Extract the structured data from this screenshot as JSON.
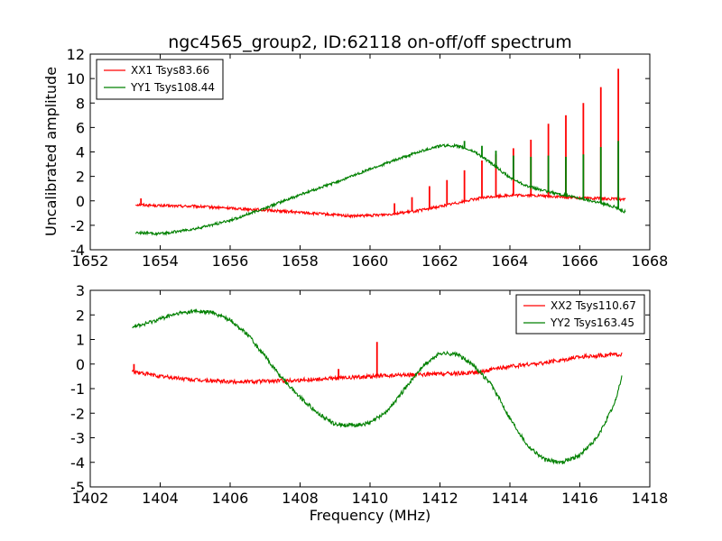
{
  "figure": {
    "title": "ngc4565_group2, ID:62118 on-off/off spectrum",
    "shared_ylabel": "Uncalibrated amplitude",
    "shared_xlabel": "Frequency (MHz)"
  },
  "chart_data": [
    {
      "type": "line",
      "title": "ngc4565_group2, ID:62118 on-off/off spectrum",
      "xlabel": "",
      "ylabel": "Uncalibrated amplitude",
      "xlim": [
        1652,
        1668
      ],
      "ylim": [
        -4,
        12
      ],
      "xticks": [
        1652,
        1654,
        1656,
        1658,
        1660,
        1662,
        1664,
        1666,
        1668
      ],
      "yticks": [
        -4,
        -2,
        0,
        2,
        4,
        6,
        8,
        10,
        12
      ],
      "grid": false,
      "legend_position": "top-left",
      "series": [
        {
          "name": "XX1 Tsys83.66",
          "color": "#ff0000",
          "x": [
            1653.3,
            1654.0,
            1655.0,
            1656.0,
            1657.0,
            1658.0,
            1659.0,
            1659.5,
            1660.0,
            1660.5,
            1661.0,
            1661.5,
            1662.0,
            1662.5,
            1663.0,
            1663.5,
            1664.0,
            1664.5,
            1665.0,
            1665.5,
            1666.0,
            1666.5,
            1667.0,
            1667.3
          ],
          "values": [
            -0.3,
            -0.4,
            -0.45,
            -0.6,
            -0.75,
            -0.95,
            -1.15,
            -1.25,
            -1.2,
            -1.1,
            -0.95,
            -0.75,
            -0.45,
            -0.15,
            0.15,
            0.35,
            0.45,
            0.45,
            0.4,
            0.3,
            0.25,
            0.2,
            0.15,
            0.1
          ],
          "spikes": [
            {
              "x": 1653.45,
              "value": 0.2
            },
            {
              "x": 1660.7,
              "value": -0.2
            },
            {
              "x": 1661.2,
              "value": 0.3
            },
            {
              "x": 1661.7,
              "value": 1.2
            },
            {
              "x": 1662.2,
              "value": 1.7
            },
            {
              "x": 1662.7,
              "value": 2.5
            },
            {
              "x": 1663.2,
              "value": 3.3
            },
            {
              "x": 1663.6,
              "value": 3.8
            },
            {
              "x": 1664.1,
              "value": 4.3
            },
            {
              "x": 1664.6,
              "value": 5.0
            },
            {
              "x": 1665.1,
              "value": 6.3
            },
            {
              "x": 1665.6,
              "value": 7.0
            },
            {
              "x": 1666.1,
              "value": 8.0
            },
            {
              "x": 1666.6,
              "value": 9.3
            },
            {
              "x": 1667.1,
              "value": 10.8
            }
          ]
        },
        {
          "name": "YY1 Tsys108.44",
          "color": "#008000",
          "x": [
            1653.3,
            1654.0,
            1655.0,
            1656.0,
            1657.0,
            1658.0,
            1659.0,
            1660.0,
            1661.0,
            1661.5,
            1662.0,
            1662.5,
            1663.0,
            1663.5,
            1664.0,
            1664.5,
            1665.0,
            1665.5,
            1666.0,
            1666.5,
            1667.0,
            1667.3
          ],
          "values": [
            -2.6,
            -2.7,
            -2.3,
            -1.6,
            -0.6,
            0.5,
            1.5,
            2.6,
            3.6,
            4.1,
            4.5,
            4.5,
            4.0,
            3.0,
            1.9,
            1.2,
            0.8,
            0.5,
            0.2,
            -0.1,
            -0.5,
            -0.9
          ],
          "spikes": [
            {
              "x": 1662.7,
              "value": 4.9
            },
            {
              "x": 1663.2,
              "value": 4.5
            },
            {
              "x": 1663.6,
              "value": 4.1
            },
            {
              "x": 1664.1,
              "value": 3.7
            },
            {
              "x": 1664.6,
              "value": 3.6
            },
            {
              "x": 1665.1,
              "value": 3.7
            },
            {
              "x": 1665.6,
              "value": 3.6
            },
            {
              "x": 1666.1,
              "value": 3.8
            },
            {
              "x": 1666.6,
              "value": 4.4
            },
            {
              "x": 1667.1,
              "value": 4.9
            }
          ]
        }
      ]
    },
    {
      "type": "line",
      "title": "",
      "xlabel": "Frequency (MHz)",
      "ylabel": "",
      "xlim": [
        1402,
        1418
      ],
      "ylim": [
        -5,
        3
      ],
      "xticks": [
        1402,
        1404,
        1406,
        1408,
        1410,
        1412,
        1414,
        1416,
        1418
      ],
      "yticks": [
        -5,
        -4,
        -3,
        -2,
        -1,
        0,
        1,
        2,
        3
      ],
      "grid": false,
      "legend_position": "top-right",
      "series": [
        {
          "name": "XX2 Tsys110.67",
          "color": "#ff0000",
          "x": [
            1403.2,
            1404.0,
            1405.0,
            1406.0,
            1407.0,
            1408.0,
            1409.0,
            1410.0,
            1411.0,
            1412.0,
            1413.0,
            1414.0,
            1415.0,
            1416.0,
            1417.2
          ],
          "values": [
            -0.3,
            -0.5,
            -0.65,
            -0.72,
            -0.7,
            -0.65,
            -0.58,
            -0.5,
            -0.45,
            -0.4,
            -0.35,
            -0.1,
            0.05,
            0.3,
            0.4
          ],
          "spikes": [
            {
              "x": 1403.25,
              "value": 0.0
            },
            {
              "x": 1409.1,
              "value": -0.2
            },
            {
              "x": 1410.2,
              "value": 0.9
            }
          ]
        },
        {
          "name": "YY2 Tsys163.45",
          "color": "#008000",
          "x": [
            1403.2,
            1403.5,
            1404.0,
            1404.5,
            1405.0,
            1405.5,
            1406.0,
            1406.5,
            1407.0,
            1407.5,
            1408.0,
            1408.5,
            1409.0,
            1409.5,
            1410.0,
            1410.5,
            1411.0,
            1411.5,
            1412.0,
            1412.5,
            1413.0,
            1413.5,
            1414.0,
            1414.5,
            1415.0,
            1415.5,
            1416.0,
            1416.5,
            1417.0,
            1417.2
          ],
          "values": [
            1.55,
            1.6,
            1.85,
            2.05,
            2.15,
            2.1,
            1.8,
            1.2,
            0.3,
            -0.6,
            -1.35,
            -2.0,
            -2.45,
            -2.5,
            -2.4,
            -1.9,
            -1.0,
            -0.1,
            0.45,
            0.4,
            -0.1,
            -0.9,
            -2.2,
            -3.3,
            -3.9,
            -4.0,
            -3.7,
            -3.0,
            -1.6,
            -0.5
          ]
        }
      ]
    }
  ]
}
